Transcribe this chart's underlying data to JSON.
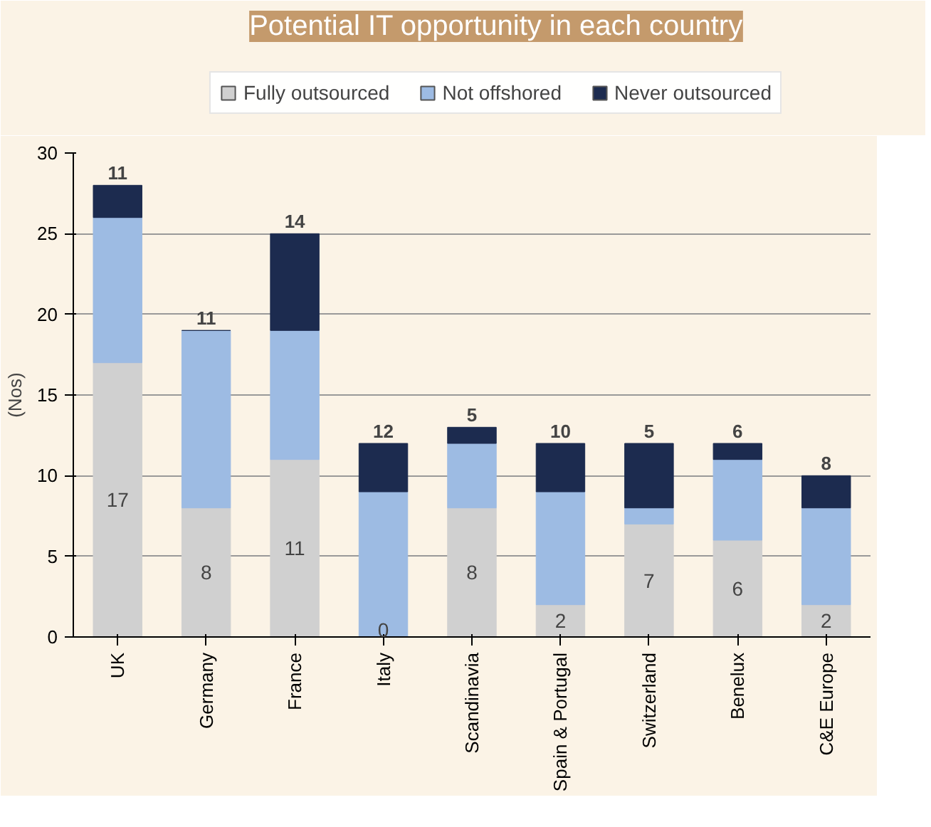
{
  "chart_data": {
    "type": "bar",
    "stacked": true,
    "title": "Potential IT opportunity in each country",
    "ylabel": "(Nos)",
    "categories": [
      "UK",
      "Germany",
      "France",
      "Italy",
      "Scandinavia",
      "Spain & Portugal",
      "Switzerland",
      "Benelux",
      "C&E Europe"
    ],
    "series": [
      {
        "name": "Fully outsourced",
        "color": "#d0d0d0",
        "values": [
          17,
          8,
          11,
          0,
          8,
          2,
          7,
          6,
          2
        ],
        "value_labels": [
          "17",
          "8",
          "11",
          "0",
          "8",
          "2",
          "7",
          "6",
          "2"
        ]
      },
      {
        "name": "Not offshored",
        "color": "#9dbbe3",
        "values": [
          9,
          11,
          8,
          9,
          4,
          7,
          1,
          5,
          6
        ]
      },
      {
        "name": "Never outsourced",
        "color": "#1c2b4f",
        "values": [
          2,
          0,
          6,
          3,
          1,
          3,
          4,
          1,
          2
        ]
      }
    ],
    "annotations": [
      {
        "text": "11",
        "x": "UK",
        "y": 28
      },
      {
        "text": "11",
        "x": "Germany",
        "y": 19
      },
      {
        "text": "14",
        "x": "France",
        "y": 25
      },
      {
        "text": "12",
        "x": "Italy",
        "y": 12
      },
      {
        "text": "5",
        "x": "Scandinavia",
        "y": 13
      },
      {
        "text": "10",
        "x": "Spain & Portugal",
        "y": 12
      },
      {
        "text": "5",
        "x": "Switzerland",
        "y": 12
      },
      {
        "text": "6",
        "x": "Benelux",
        "y": 12
      },
      {
        "text": "8",
        "x": "C&E Europe",
        "y": 10
      }
    ],
    "ylim": [
      0,
      30
    ],
    "yticks": [
      0,
      5,
      10,
      15,
      20,
      25,
      30
    ],
    "grid": "y",
    "legend": "top"
  }
}
